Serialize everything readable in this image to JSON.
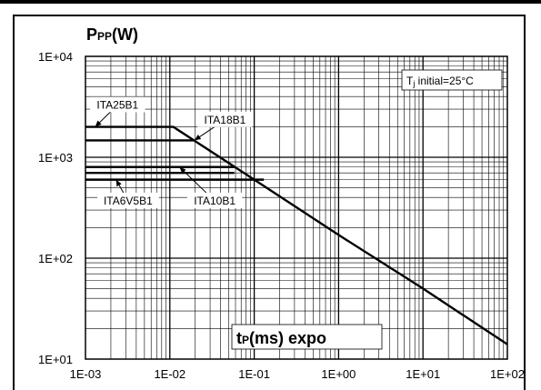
{
  "chart_data": {
    "type": "line",
    "title": "",
    "xlabel_main": "t",
    "xlabel_sub": "P",
    "xlabel_rest": "(ms) expo",
    "ylabel_main": "P",
    "ylabel_sub": "PP",
    "ylabel_rest": "(W)",
    "xscale": "log",
    "yscale": "log",
    "xlim": [
      0.001,
      100
    ],
    "ylim": [
      10,
      10000
    ],
    "grid": true,
    "xticks": [
      {
        "value": 0.001,
        "label": "1E-03"
      },
      {
        "value": 0.01,
        "label": "1E-02"
      },
      {
        "value": 0.1,
        "label": "1E-01"
      },
      {
        "value": 1,
        "label": "1E+00"
      },
      {
        "value": 10,
        "label": "1E+01"
      },
      {
        "value": 100,
        "label": "1E+02"
      }
    ],
    "yticks": [
      {
        "value": 10,
        "label": "1E+01"
      },
      {
        "value": 100,
        "label": "1E+02"
      },
      {
        "value": 1000,
        "label": "1E+03"
      },
      {
        "value": 10000,
        "label": "1E+04"
      }
    ],
    "annotation_condition_main": "T",
    "annotation_condition_sub": "j",
    "annotation_condition_rest": " initial=25°C",
    "series": [
      {
        "name": "ITA25B1",
        "x": [
          0.001,
          0.011,
          0.1,
          1,
          10,
          100
        ],
        "y": [
          2000,
          2000,
          600,
          170,
          50,
          14
        ]
      },
      {
        "name": "ITA18B1",
        "x": [
          0.001,
          0.0195
        ],
        "y": [
          1470,
          1470
        ]
      },
      {
        "name": "ITA10B1",
        "x": [
          0.001,
          0.058
        ],
        "y": [
          800,
          800
        ]
      },
      {
        "name": "ITA6V5B1",
        "x": [
          0.001,
          0.13
        ],
        "y": [
          600,
          600
        ]
      }
    ],
    "labels": [
      {
        "text": "ITA25B1",
        "anchor": {
          "x": 0.0013,
          "y": 2000
        },
        "box": {
          "x": 0.0024,
          "y": 3300
        }
      },
      {
        "text": "ITA18B1",
        "anchor": {
          "x": 0.0195,
          "y": 1470
        },
        "box": {
          "x": 0.045,
          "y": 2350
        }
      },
      {
        "text": "ITA6V5B1",
        "anchor": {
          "x": 0.0023,
          "y": 600
        },
        "box": {
          "x": 0.0032,
          "y": 370
        }
      },
      {
        "text": "ITA10B1",
        "anchor": {
          "x": 0.013,
          "y": 800
        },
        "box": {
          "x": 0.034,
          "y": 370
        }
      }
    ],
    "extra_lines": [
      {
        "x": [
          0.001,
          0.058
        ],
        "y": [
          700,
          700
        ]
      }
    ]
  }
}
